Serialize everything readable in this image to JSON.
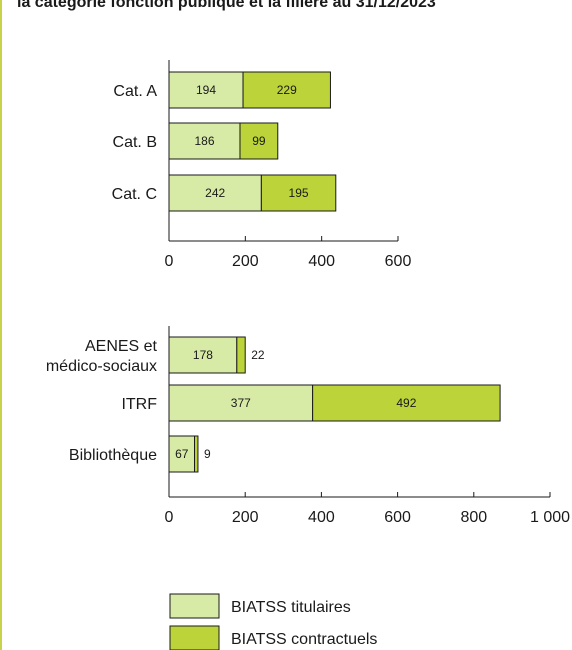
{
  "page": {
    "title": "la catégorie fonction publique et la filière au 31/12/2023"
  },
  "colors": {
    "titulaires": "#d7eaa6",
    "contractuels": "#bcd43a",
    "bar_border": "#1a1a1a",
    "axis": "#1a1a1a",
    "left_rule": "#c8d24a"
  },
  "chart_data": [
    {
      "type": "bar",
      "orientation": "horizontal",
      "stacked": true,
      "categories": [
        "Cat. A",
        "Cat. B",
        "Cat. C"
      ],
      "series": [
        {
          "name": "BIATSS titulaires",
          "values": [
            194,
            186,
            242
          ]
        },
        {
          "name": "BIATSS contractuels",
          "values": [
            229,
            99,
            195
          ]
        }
      ],
      "xlim": [
        0,
        600
      ],
      "xticks": [
        0,
        200,
        400,
        600
      ],
      "xtick_labels": [
        "0",
        "200",
        "400",
        "600"
      ],
      "grid": false
    },
    {
      "type": "bar",
      "orientation": "horizontal",
      "stacked": true,
      "categories": [
        "AENES et\nmédico-sociaux",
        "ITRF",
        "Bibliothèque"
      ],
      "series": [
        {
          "name": "BIATSS titulaires",
          "values": [
            178,
            377,
            67
          ]
        },
        {
          "name": "BIATSS contractuels",
          "values": [
            22,
            492,
            9
          ]
        }
      ],
      "xlim": [
        0,
        1000
      ],
      "xticks": [
        0,
        200,
        400,
        600,
        800,
        1000
      ],
      "xtick_labels": [
        "0",
        "200",
        "400",
        "600",
        "800",
        "1 000"
      ],
      "grid": false
    }
  ],
  "legend": {
    "position": "bottom",
    "items": [
      {
        "label": "BIATSS titulaires",
        "series": "titulaires"
      },
      {
        "label": "BIATSS contractuels",
        "series": "contractuels"
      }
    ]
  }
}
